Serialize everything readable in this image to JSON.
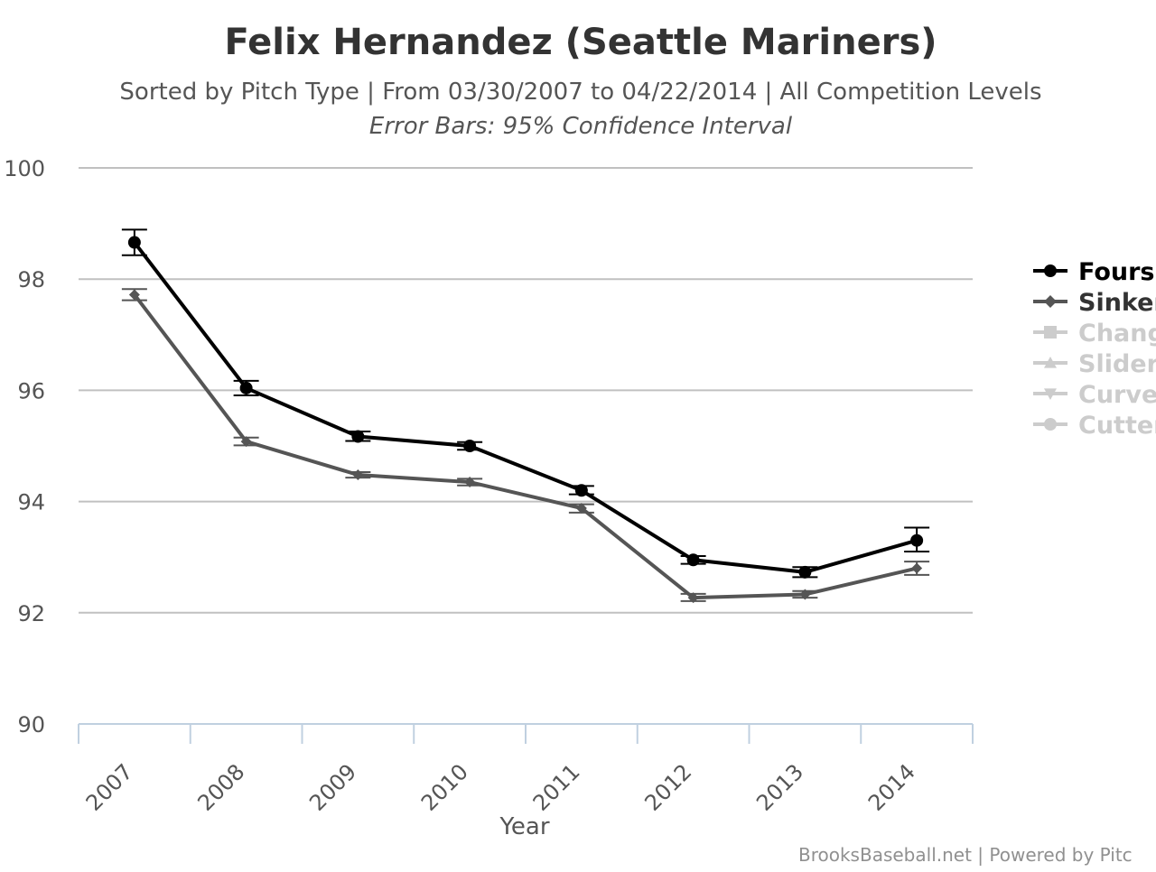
{
  "chart_data": {
    "type": "line",
    "title": "Felix Hernandez (Seattle Mariners)",
    "subtitle": "Sorted by Pitch Type | From 03/30/2007 to 04/22/2014 | All Competition Levels",
    "subtitle2": "Error Bars: 95% Confidence Interval",
    "xlabel": "Year",
    "ylabel": "",
    "categories": [
      "2007",
      "2008",
      "2009",
      "2010",
      "2011",
      "2012",
      "2013",
      "2014"
    ],
    "ylim": [
      90,
      100
    ],
    "yticks": [
      "90",
      "92",
      "94",
      "96",
      "98",
      "100"
    ],
    "grid": true,
    "legend_position": "right",
    "series": [
      {
        "name": "Fours",
        "color": "#000000",
        "marker": "circle",
        "visible": true,
        "values": [
          98.66,
          96.04,
          95.17,
          95.0,
          94.2,
          92.95,
          92.73,
          93.3
        ],
        "err_low": [
          98.43,
          95.91,
          95.09,
          94.93,
          94.13,
          92.88,
          92.64,
          93.1
        ],
        "err_high": [
          98.89,
          96.17,
          95.26,
          95.07,
          94.28,
          93.02,
          92.82,
          93.53
        ]
      },
      {
        "name": "Sinker",
        "color": "#555555",
        "marker": "diamond",
        "visible": true,
        "values": [
          97.72,
          95.08,
          94.48,
          94.35,
          93.88,
          92.27,
          92.33,
          92.8
        ],
        "err_low": [
          97.62,
          95.01,
          94.43,
          94.29,
          93.8,
          92.21,
          92.27,
          92.68
        ],
        "err_high": [
          97.82,
          95.15,
          94.53,
          94.41,
          93.95,
          92.34,
          92.39,
          92.92
        ]
      },
      {
        "name": "Chang",
        "color": "#cccccc",
        "marker": "square",
        "visible": false
      },
      {
        "name": "Slider",
        "color": "#cccccc",
        "marker": "triangle",
        "visible": false
      },
      {
        "name": "Curve",
        "color": "#cccccc",
        "marker": "triangle-down",
        "visible": false
      },
      {
        "name": "Cutter",
        "color": "#cccccc",
        "marker": "circle",
        "visible": false
      }
    ],
    "credit": "BrooksBaseball.net | Powered by Pitc"
  }
}
